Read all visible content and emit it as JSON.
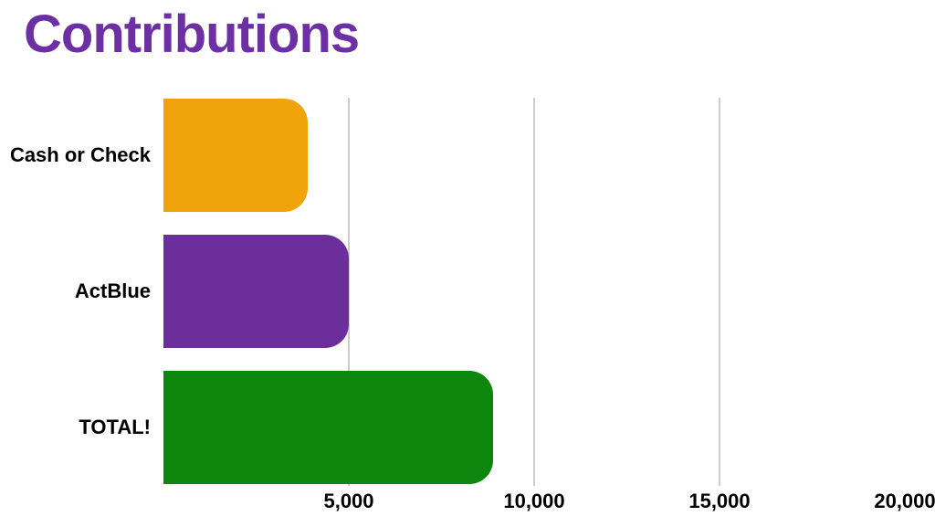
{
  "title": {
    "text": "Contributions",
    "color": "#6C2FA4"
  },
  "chart_data": {
    "type": "bar",
    "orientation": "horizontal",
    "title": "Contributions",
    "categories": [
      "Cash or Check",
      "ActBlue",
      "TOTAL!"
    ],
    "values": [
      3900,
      5000,
      8900
    ],
    "bar_colors": [
      "#F0A30B",
      "#6B2E9B",
      "#0C860C"
    ],
    "xlabel": "",
    "ylabel": "",
    "xlim": [
      0,
      20000
    ],
    "x_ticks": [
      5000,
      10000,
      15000,
      20000
    ],
    "x_tick_labels": [
      "5,000",
      "10,000",
      "15,000",
      "20,000"
    ],
    "gridline_ticks": [
      5000,
      10000,
      15000
    ],
    "grid": true,
    "legend_position": "none",
    "gridline_color": "#CCCCCC",
    "axis_label_color": "#000000"
  }
}
